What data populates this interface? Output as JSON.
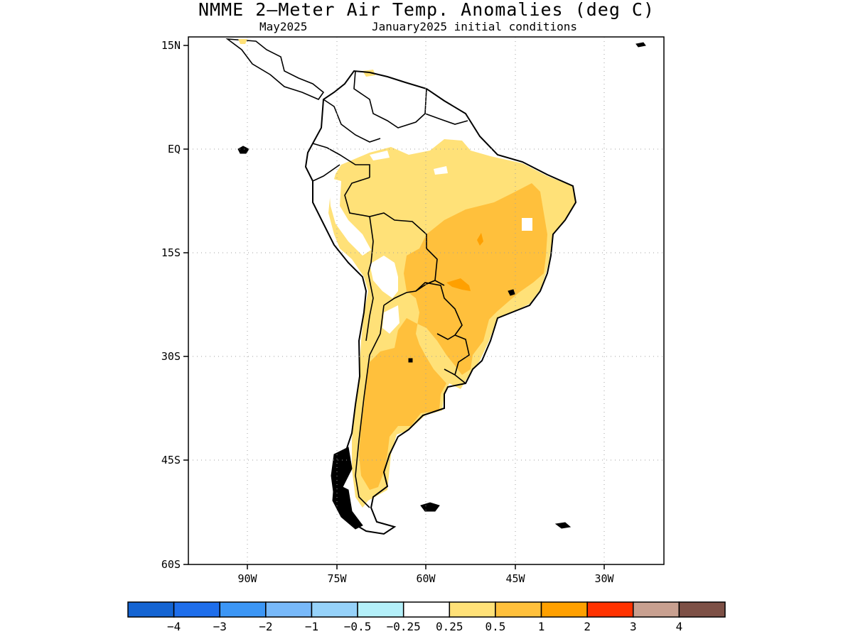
{
  "title": "NMME 2–Meter Air Temp. Anomalies (deg C)",
  "subtitle_left": "May2025",
  "subtitle_right": "January2025 initial conditions",
  "map": {
    "lon_range": [
      -100,
      -20
    ],
    "lat_range": [
      -60,
      15
    ],
    "lon_ticks": [
      {
        "lon": -90,
        "label": "90W"
      },
      {
        "lon": -75,
        "label": "75W"
      },
      {
        "lon": -60,
        "label": "60W"
      },
      {
        "lon": -45,
        "label": "45W"
      },
      {
        "lon": -30,
        "label": "30W"
      }
    ],
    "lat_ticks": [
      {
        "lat": 15,
        "label": "15N"
      },
      {
        "lat": 0,
        "label": "EQ"
      },
      {
        "lat": -15,
        "label": "15S"
      },
      {
        "lat": -30,
        "label": "30S"
      },
      {
        "lat": -45,
        "label": "45S"
      },
      {
        "lat": -60,
        "label": "60S"
      }
    ],
    "grid": "dotted",
    "land_outline_color": "#000000"
  },
  "colorbar": {
    "colors": [
      "#1464d2",
      "#1e6eeb",
      "#3c96f5",
      "#78b9fa",
      "#96d2fa",
      "#b4f0fa",
      "#ffffff",
      "#ffe178",
      "#ffc03c",
      "#ffa000",
      "#ff3200",
      "#c8a090",
      "#7d5046"
    ],
    "labels": [
      "−4",
      "−3",
      "−2",
      "−1",
      "−0.5",
      "−0.25",
      "0.25",
      "0.5",
      "1",
      "2",
      "3",
      "4"
    ]
  },
  "anomaly_colors": {
    "light": "#ffe178",
    "medium": "#ffc03c",
    "strong": "#ffa000"
  }
}
